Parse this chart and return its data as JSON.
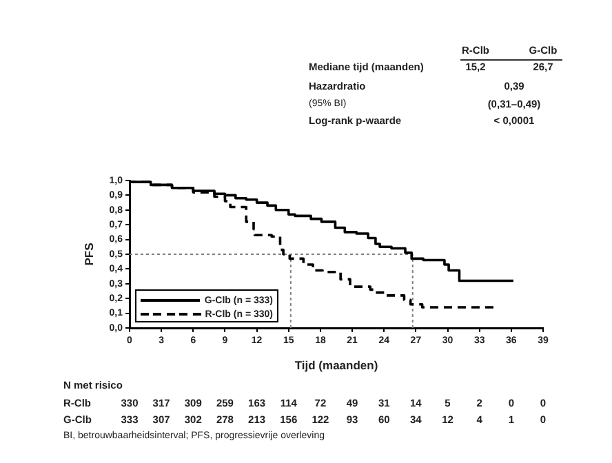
{
  "chart_data": {
    "type": "step",
    "xlabel": "Tijd (maanden)",
    "ylabel": "PFS",
    "xlim": [
      0,
      39
    ],
    "xticks": [
      0,
      3,
      6,
      9,
      12,
      15,
      18,
      21,
      24,
      27,
      30,
      33,
      36,
      39
    ],
    "ylim": [
      0,
      1
    ],
    "yticks": [
      {
        "value": 0,
        "label": "0,0"
      },
      {
        "value": 0.1,
        "label": "0,1"
      },
      {
        "value": 0.2,
        "label": "0,2"
      },
      {
        "value": 0.3,
        "label": "0,3"
      },
      {
        "value": 0.4,
        "label": "0,4"
      },
      {
        "value": 0.5,
        "label": "0,5"
      },
      {
        "value": 0.6,
        "label": "0,6"
      },
      {
        "value": 0.7,
        "label": "0,7"
      },
      {
        "value": 0.8,
        "label": "0,8"
      },
      {
        "value": 0.9,
        "label": "0,9"
      },
      {
        "value": 1,
        "label": "1,0"
      }
    ],
    "grid": false,
    "legend": "bottom left",
    "marker": "none",
    "series": [
      {
        "name": "G-Clb (n = 333)",
        "color": "#000000",
        "line_style": "solid",
        "x": [
          0,
          2,
          4,
          6,
          8,
          9,
          10,
          11,
          12,
          13,
          13.8,
          15,
          15.6,
          17.1,
          18.1,
          19.4,
          20.3,
          21.4,
          22.5,
          23.2,
          23.6,
          24.7,
          26,
          26.6,
          27.7,
          29.7,
          30.1,
          31.1,
          33,
          36.2
        ],
        "values": [
          1,
          0.99,
          0.97,
          0.95,
          0.93,
          0.91,
          0.9,
          0.88,
          0.87,
          0.85,
          0.83,
          0.8,
          0.77,
          0.76,
          0.74,
          0.72,
          0.68,
          0.65,
          0.64,
          0.61,
          0.57,
          0.55,
          0.54,
          0.51,
          0.47,
          0.46,
          0.43,
          0.39,
          0.32,
          0.32
        ]
      },
      {
        "name": "R-Clb (n = 330)",
        "color": "#000000",
        "line_style": "dashed",
        "x": [
          0,
          2,
          4,
          6,
          8,
          9,
          9.5,
          11,
          11.7,
          11.8,
          13.4,
          14.2,
          14.5,
          15.1,
          16.4,
          17.3,
          18.2,
          19.9,
          20.8,
          22.7,
          23.2,
          24.2,
          25.9,
          26.5,
          27.6,
          28.2,
          34.4
        ],
        "values": [
          1,
          0.99,
          0.97,
          0.95,
          0.92,
          0.89,
          0.86,
          0.82,
          0.72,
          0.67,
          0.63,
          0.62,
          0.53,
          0.5,
          0.47,
          0.43,
          0.39,
          0.38,
          0.33,
          0.28,
          0.26,
          0.24,
          0.22,
          0.19,
          0.16,
          0.14,
          0.14
        ]
      }
    ],
    "ref_lines": [
      {
        "axis": "y",
        "value": 0.5,
        "color": "#808080",
        "line_style": "dotted"
      },
      {
        "axis": "x",
        "value": 15.2,
        "color": "#808080",
        "line_style": "dotted"
      },
      {
        "axis": "x",
        "value": 26.7,
        "color": "#808080",
        "line_style": "dotted"
      }
    ],
    "annotations": [
      "R-Clb",
      "G-Clb",
      "Mediane tijd (maanden)",
      "15,2",
      "26,7",
      "Hazardratio",
      "0,39",
      "(95% BI)",
      "(0,31–0,49)",
      "Log-rank p-waarde",
      "< 0,0001",
      "N met risico",
      "R-Clb",
      "330",
      "317",
      "309",
      "259",
      "163",
      "114",
      "72",
      "49",
      "31",
      "14",
      "5",
      "2",
      "0",
      "0",
      "G-Clb",
      "333",
      "307",
      "302",
      "278",
      "213",
      "156",
      "122",
      "93",
      "60",
      "34",
      "12",
      "4",
      "1",
      "0",
      "BI, betrouwbaarheidsinterval; PFS, progressievrije overleving"
    ]
  }
}
